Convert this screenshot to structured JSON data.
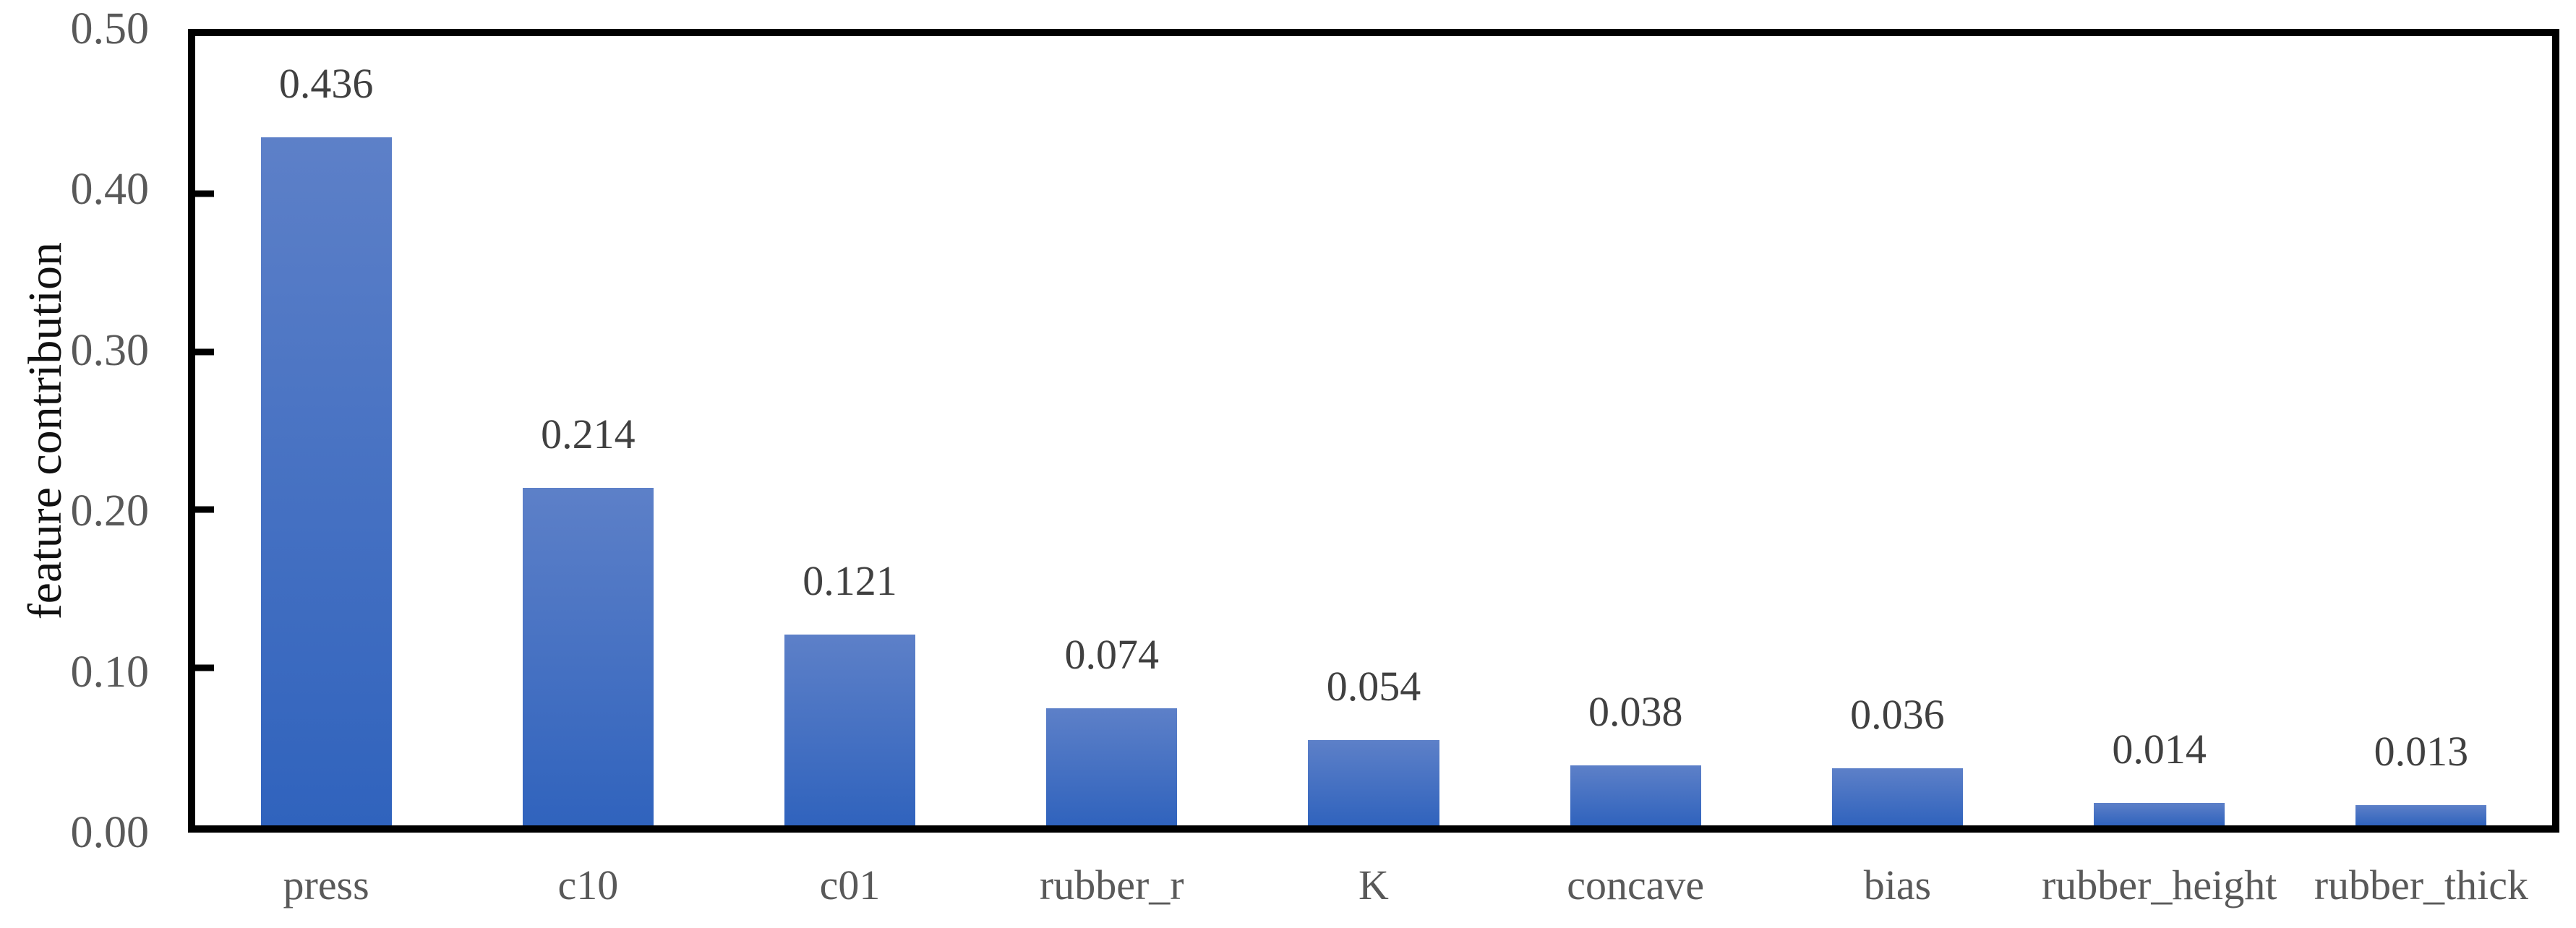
{
  "chart_data": {
    "type": "bar",
    "title": "",
    "categories": [
      "press",
      "c10",
      "c01",
      "rubber_r",
      "K",
      "concave",
      "bias",
      "rubber_height",
      "rubber_thick"
    ],
    "values": [
      0.436,
      0.214,
      0.121,
      0.074,
      0.054,
      0.038,
      0.036,
      0.014,
      0.013
    ],
    "value_labels": [
      "0.436",
      "0.214",
      "0.121",
      "0.074",
      "0.054",
      "0.038",
      "0.036",
      "0.014",
      "0.013"
    ],
    "xlabel": "",
    "ylabel": "feature contribution",
    "ylim": [
      0,
      0.5
    ],
    "yticks": [
      {
        "value": 0.0,
        "label": "0.00"
      },
      {
        "value": 0.1,
        "label": "0.10"
      },
      {
        "value": 0.2,
        "label": "0.20"
      },
      {
        "value": 0.3,
        "label": "0.30"
      },
      {
        "value": 0.4,
        "label": "0.40"
      },
      {
        "value": 0.5,
        "label": "0.50"
      }
    ],
    "grid": false,
    "legend_position": "none",
    "colors": {
      "bar_gradient_top": "#5D80C8",
      "bar_gradient_bottom": "#3063BD",
      "frame": "#000000",
      "tick_labels": "#595959",
      "value_labels": "#404040",
      "axis_title": "#111111"
    }
  }
}
